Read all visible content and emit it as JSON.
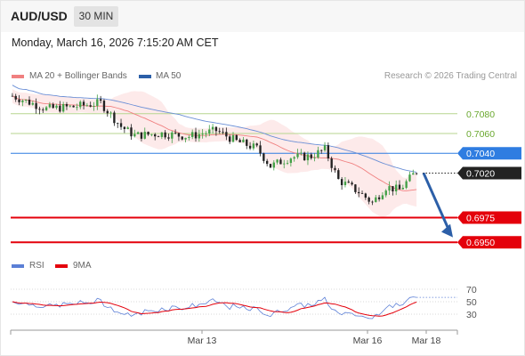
{
  "header": {
    "pair": "AUD/USD",
    "timeframe": "30 MIN",
    "datetime": "Monday, March 16, 2026 7:15:20 AM CET"
  },
  "legend": {
    "ma20_label": "MA 20 + Bollinger Bands",
    "ma50_label": "MA 50",
    "rsi_label": "RSI",
    "rsi_ma_label": "9MA",
    "credit": "Research © 2026 Trading Central"
  },
  "colors": {
    "bull": "#43a047",
    "bear": "#222222",
    "ma20": "#f08080",
    "ma50": "#6b8fd6",
    "bollinger_fill": "#fbd9d9",
    "resistance": "#b7d68f",
    "pivot": "#2f7de1",
    "support": "#e4000b",
    "current": "#222222",
    "rsi": "#5b7fd6",
    "rsi_ma": "#e4000b",
    "arrow": "#2c5fa8"
  },
  "chart_data": [
    {
      "type": "candlestick",
      "title": "AUD/USD 30 MIN",
      "ylim": [
        0.6943,
        0.7105
      ],
      "x_tick_labels": [
        "Mar 13",
        "Mar 16",
        "Mar 18"
      ],
      "levels": [
        {
          "value": 0.708,
          "label": "0.7080",
          "kind": "resistance"
        },
        {
          "value": 0.706,
          "label": "0.7060",
          "kind": "resistance"
        },
        {
          "value": 0.704,
          "label": "0.7040",
          "kind": "pivot"
        },
        {
          "value": 0.702,
          "label": "0.7020",
          "kind": "current"
        },
        {
          "value": 0.6975,
          "label": "0.6975",
          "kind": "support"
        },
        {
          "value": 0.695,
          "label": "0.6950",
          "kind": "support"
        }
      ],
      "forecast_arrow": {
        "from": 0.702,
        "to": 0.6955,
        "direction": "down"
      },
      "series": [
        {
          "name": "MA 20 + Bollinger Bands"
        },
        {
          "name": "MA 50"
        }
      ],
      "key_prices": {
        "start": 0.7098,
        "mid_low": 0.7,
        "recent_low": 0.6985,
        "last": 0.7022
      }
    },
    {
      "type": "line",
      "title": "RSI",
      "ylim": [
        20,
        80
      ],
      "y_ticks": [
        70,
        50,
        30
      ],
      "series": [
        {
          "name": "RSI"
        },
        {
          "name": "9MA"
        }
      ],
      "last_value": 57
    }
  ]
}
